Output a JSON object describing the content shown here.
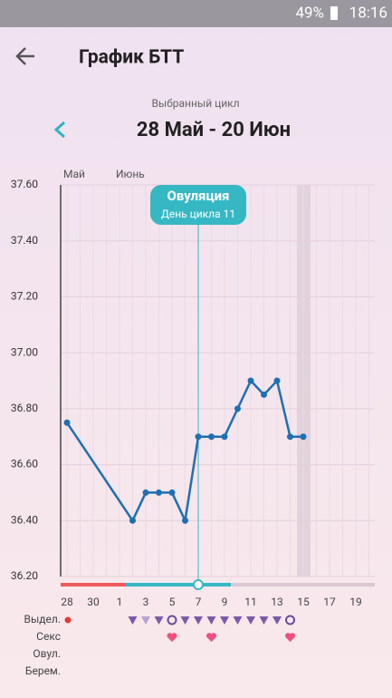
{
  "status_bar": {
    "battery": "49%",
    "time": "18:16"
  },
  "header": {
    "title": "График БТТ"
  },
  "cycle": {
    "caption": "Выбранный цикл",
    "range": "28 Май - 20 Июн"
  },
  "chart_data": {
    "type": "line",
    "month_labels": [
      "Май",
      "Июнь"
    ],
    "annotation": {
      "title": "Овуляция",
      "text": "День цикла 11"
    },
    "categories": [
      "28",
      null,
      "30",
      null,
      "1",
      null,
      "3",
      null,
      "5",
      null,
      "7",
      null,
      "9",
      null,
      "11",
      null,
      "13",
      null,
      "15",
      null,
      "17",
      null,
      "19",
      null
    ],
    "series": [
      {
        "color": "#1f6fb2",
        "values": [
          36.75,
          null,
          null,
          null,
          null,
          36.4,
          36.5,
          36.5,
          36.5,
          36.4,
          36.7,
          36.7,
          36.7,
          36.8,
          36.9,
          36.85,
          36.9,
          36.7,
          36.7,
          null,
          null,
          null,
          null,
          null
        ]
      }
    ],
    "ylim": [
      36.2,
      37.6
    ],
    "yticks": [
      {
        "value": 36.2,
        "label": "36.20"
      },
      {
        "value": 36.4,
        "label": "36.40"
      },
      {
        "value": 36.6,
        "label": "36.60"
      },
      {
        "value": 36.8,
        "label": "36.80"
      },
      {
        "value": 37.0,
        "label": "37.00"
      },
      {
        "value": 37.2,
        "label": "37.20"
      },
      {
        "value": 37.4,
        "label": "37.40"
      },
      {
        "value": 37.6,
        "label": "37.60"
      }
    ],
    "grid": true
  },
  "tracker_rows": [
    "Выдел.",
    "Секс",
    "Овул.",
    "Берем."
  ]
}
